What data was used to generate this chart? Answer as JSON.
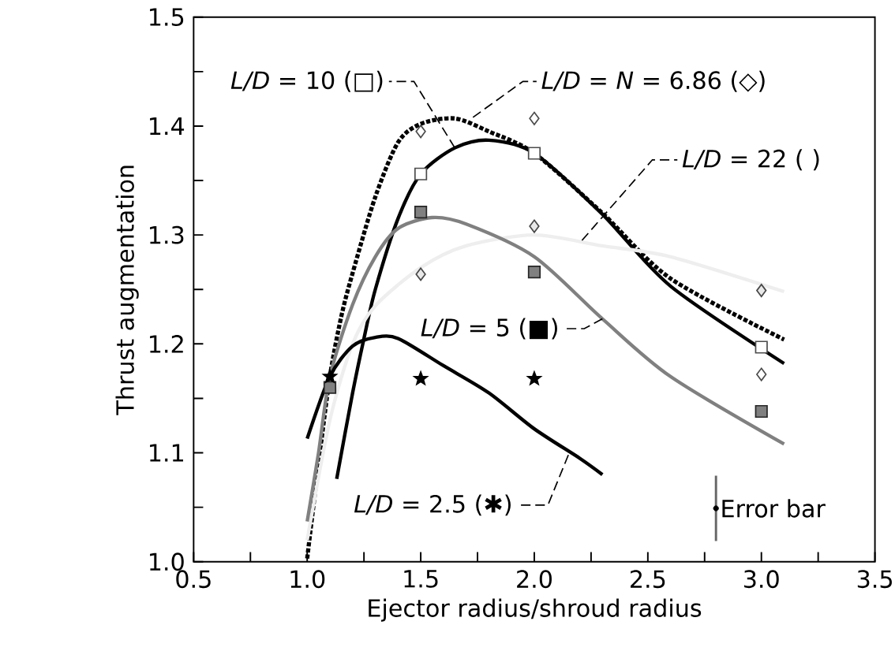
{
  "chart_data": {
    "type": "line",
    "xlabel": "Ejector radius/shroud radius",
    "ylabel": "Thrust augmentation",
    "xlim": [
      0.5,
      3.5
    ],
    "ylim": [
      1.0,
      1.5
    ],
    "xticks": [
      0.5,
      {
        "value": 0.75,
        "label": null
      },
      {
        "value": 1.0,
        "label": "1.0"
      },
      {
        "value": 1.25,
        "label": null
      },
      1.5,
      {
        "value": 1.75,
        "label": null
      },
      {
        "value": 2.0,
        "label": "2.0"
      },
      {
        "value": 2.25,
        "label": null
      },
      2.5,
      {
        "value": 2.75,
        "label": null
      },
      {
        "value": 3.0,
        "label": "3.0"
      },
      {
        "value": 3.25,
        "label": null
      },
      3.5
    ],
    "yticks": [
      {
        "value": 1.0,
        "label": "1.0"
      },
      {
        "value": 1.05,
        "label": null
      },
      1.1,
      {
        "value": 1.15,
        "label": null
      },
      1.2,
      {
        "value": 1.25,
        "label": null
      },
      1.3,
      {
        "value": 1.35,
        "label": null
      },
      1.4,
      {
        "value": 1.45,
        "label": null
      },
      1.5
    ],
    "annotations": [
      {
        "text": "*L/D* = 10 (□)",
        "x": 1.65,
        "y": 1.38
      },
      {
        "text": "*L/D* = *N* = 6.86 (◇)",
        "x": 1.73,
        "y": 1.408
      },
      {
        "text": "*L/D* = 22 ( )",
        "x": 2.21,
        "y": 1.295
      },
      {
        "text": "*L/D* = 5 (■)",
        "x": 2.3,
        "y": 1.223
      },
      {
        "text": "*L/D* = 2.5 (✱)",
        "x": 2.15,
        "y": 1.098
      }
    ],
    "series": [
      {
        "color": "#000000",
        "line_style": "solid",
        "x": [
          1.13,
          1.2,
          1.25,
          1.3,
          1.4,
          1.5,
          1.65,
          1.8,
          2.0,
          2.3,
          2.6,
          3.1
        ],
        "values": [
          1.076,
          1.155,
          1.205,
          1.25,
          1.315,
          1.356,
          1.38,
          1.387,
          1.375,
          1.319,
          1.253,
          1.182
        ]
      },
      {
        "type": "scatter",
        "color": "#ffffff",
        "marker": "square",
        "x": [
          1.5,
          2.0,
          3.0
        ],
        "values": [
          1.356,
          1.375,
          1.197
        ]
      },
      {
        "color": "#000000",
        "line_style": "dotted",
        "x": [
          1.0,
          1.05,
          1.1,
          1.15,
          1.2,
          1.3,
          1.4,
          1.5,
          1.65,
          1.8,
          2.0,
          2.3,
          2.6,
          3.1
        ],
        "values": [
          1.003,
          1.09,
          1.17,
          1.225,
          1.265,
          1.335,
          1.385,
          1.402,
          1.407,
          1.395,
          1.375,
          1.32,
          1.26,
          1.204
        ]
      },
      {
        "type": "scatter",
        "color": "#ffffff",
        "marker": "diamond",
        "x": [
          1.5,
          2.0,
          3.0
        ],
        "values": [
          1.395,
          1.407,
          1.172
        ]
      },
      {
        "color": "#eeeeee",
        "line_style": "solid",
        "x": [
          1.0,
          1.1,
          1.2,
          1.3,
          1.5,
          1.7,
          2.0,
          2.3,
          2.6,
          3.1
        ],
        "values": [
          1.02,
          1.13,
          1.2,
          1.235,
          1.27,
          1.29,
          1.3,
          1.29,
          1.28,
          1.248
        ]
      },
      {
        "type": "scatter",
        "color": "#e8e8e8",
        "marker": "diamond",
        "x": [
          1.5,
          2.0,
          3.0
        ],
        "values": [
          1.264,
          1.308,
          1.249
        ]
      },
      {
        "color": "#808080",
        "line_style": "solid",
        "x": [
          1.0,
          1.05,
          1.1,
          1.2,
          1.3,
          1.4,
          1.55,
          1.7,
          2.0,
          2.3,
          2.6,
          3.1
        ],
        "values": [
          1.037,
          1.1,
          1.17,
          1.236,
          1.28,
          1.306,
          1.316,
          1.31,
          1.28,
          1.223,
          1.17,
          1.108
        ]
      },
      {
        "type": "scatter",
        "color": "#808080",
        "marker": "square",
        "x": [
          1.1,
          1.5,
          2.0,
          3.0
        ],
        "values": [
          1.16,
          1.321,
          1.266,
          1.138
        ]
      },
      {
        "color": "#000000",
        "line_style": "solid",
        "x": [
          1.0,
          1.1,
          1.2,
          1.3,
          1.4,
          1.6,
          1.8,
          2.0,
          2.2,
          2.3
        ],
        "values": [
          1.113,
          1.17,
          1.198,
          1.206,
          1.205,
          1.18,
          1.155,
          1.122,
          1.095,
          1.08
        ]
      },
      {
        "type": "scatter",
        "color": "#000000",
        "marker": "star",
        "x": [
          1.1,
          1.5,
          2.0
        ],
        "values": [
          1.17,
          1.168,
          1.168
        ]
      },
      {
        "name": "Error bar",
        "type": "scatter",
        "color": "#000000",
        "marker": "circle",
        "x": [
          2.8
        ],
        "values": [
          1.049
        ],
        "errors": [
          0.03
        ]
      }
    ]
  }
}
